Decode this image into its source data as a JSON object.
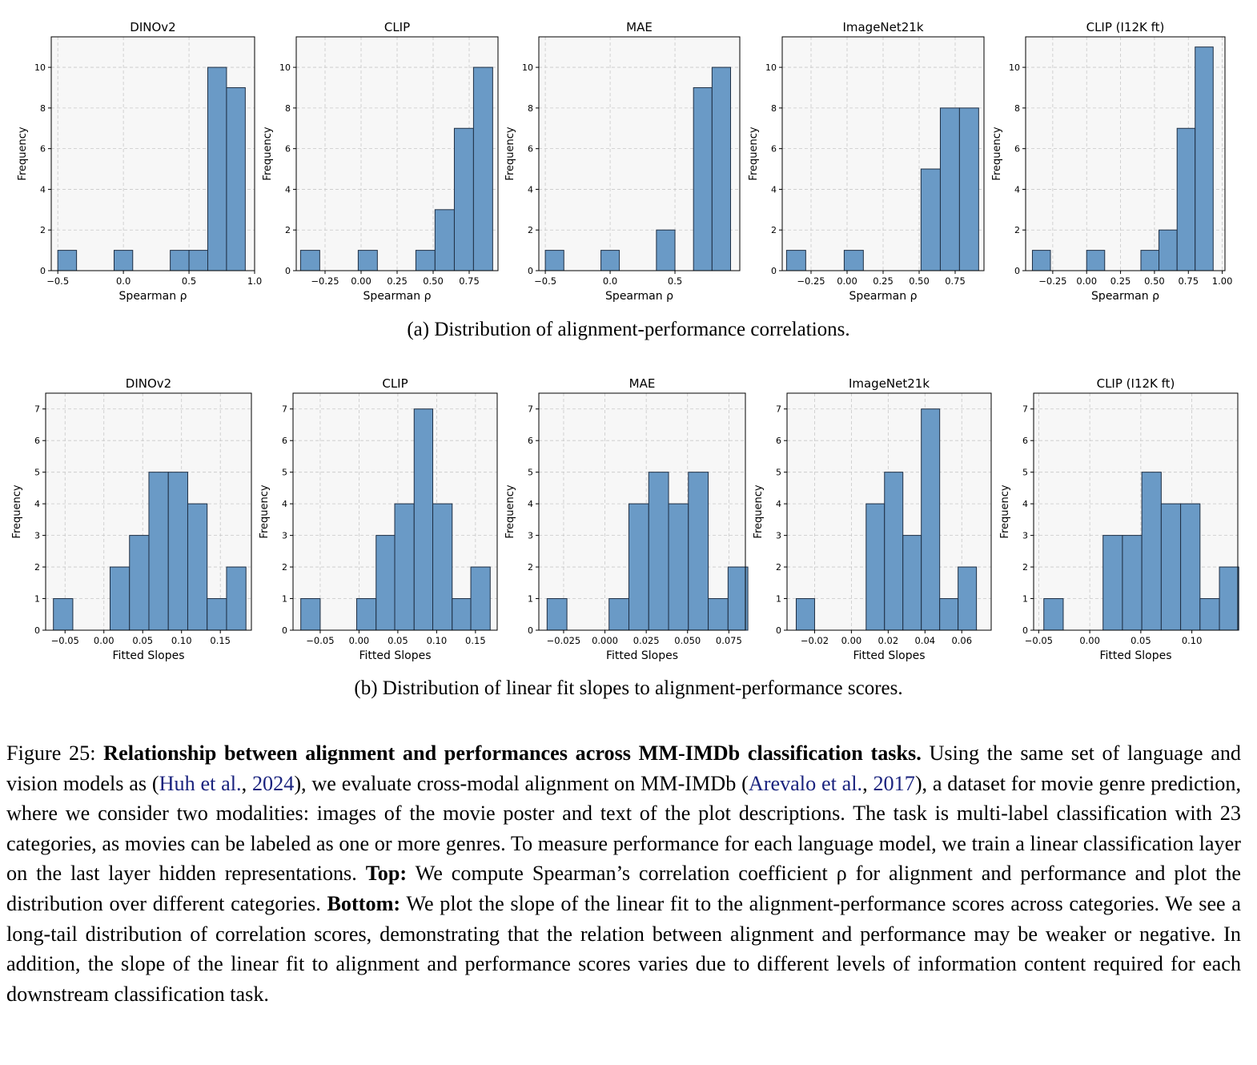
{
  "subcaptions": {
    "a": "(a) Distribution of alignment-performance correlations.",
    "b": "(b) Distribution of linear fit slopes to alignment-performance scores."
  },
  "caption": {
    "label": "Figure 25:",
    "title": "Relationship between alignment and performances across MM-IMDb classification tasks.",
    "p1": "Using the same set of language and vision models as (",
    "cite1_author": "Huh et al.",
    "cite1_sep": ", ",
    "cite1_year": "2024",
    "p2": "), we evaluate cross-modal alignment on MM-IMDb (",
    "cite2_author": "Arevalo et al.",
    "cite2_sep": ", ",
    "cite2_year": "2017",
    "p3": "), a dataset for movie genre prediction, where we consider two modalities: images of the movie poster and text of the plot descriptions. The task is multi-label classification with 23 categories, as movies can be labeled as one or more genres. To measure performance for each language model, we train a linear classification layer on the last layer hidden representations.",
    "top_label": "Top:",
    "p4": "We compute Spearman’s correlation coefficient ρ for alignment and performance and plot the distribution over different categories.",
    "bottom_label": "Bottom:",
    "p5": "We plot the slope of the linear fit to the alignment-performance scores across categories. We see a long-tail distribution of correlation scores, demonstrating that the relation between alignment and performance may be weaker or negative. In addition, the slope of the linear fit to alignment and performance scores varies due to different levels of information content required for each downstream classification task."
  },
  "colors": {
    "bar": "#6a9ac6",
    "bar_edge": "#1f2f44",
    "plot_bg": "#f7f7f7",
    "grid": "#c8c8c8"
  },
  "chart_data": [
    {
      "type": "bar",
      "title": "DINOv2",
      "xlabel": "Spearman ρ",
      "ylabel": "Frequency",
      "xlim": [
        -0.55,
        1.0
      ],
      "ylim": [
        0,
        11.5
      ],
      "yticks": [
        0,
        2,
        4,
        6,
        8,
        10
      ],
      "xticks": [
        -0.5,
        0.0,
        0.5,
        1.0
      ],
      "xtick_labels": [
        "−0.5",
        "0.0",
        "0.5",
        "1.0"
      ],
      "bins": [
        [
          -0.5,
          -0.357,
          1
        ],
        [
          -0.071,
          0.071,
          1
        ],
        [
          0.357,
          0.5,
          1
        ],
        [
          0.5,
          0.643,
          1
        ],
        [
          0.643,
          0.786,
          10
        ],
        [
          0.786,
          0.929,
          9
        ]
      ]
    },
    {
      "type": "bar",
      "title": "CLIP",
      "xlabel": "Spearman ρ",
      "ylabel": "Frequency",
      "xlim": [
        -0.45,
        0.95
      ],
      "ylim": [
        0,
        11.5
      ],
      "yticks": [
        0,
        2,
        4,
        6,
        8,
        10
      ],
      "xticks": [
        -0.25,
        0,
        0.25,
        0.5,
        0.75
      ],
      "xtick_labels": [
        "−0.25",
        "0.00",
        "0.25",
        "0.50",
        "0.75"
      ],
      "bins": [
        [
          -0.42,
          -0.287,
          1
        ],
        [
          -0.02,
          0.113,
          1
        ],
        [
          0.38,
          0.513,
          1
        ],
        [
          0.513,
          0.647,
          3
        ],
        [
          0.647,
          0.78,
          7
        ],
        [
          0.78,
          0.913,
          10
        ]
      ]
    },
    {
      "type": "bar",
      "title": "MAE",
      "xlabel": "Spearman ρ",
      "ylabel": "Frequency",
      "xlim": [
        -0.55,
        1.0
      ],
      "ylim": [
        0,
        11.5
      ],
      "yticks": [
        0,
        2,
        4,
        6,
        8,
        10
      ],
      "xticks": [
        -0.5,
        0.0,
        0.5
      ],
      "xtick_labels": [
        "−0.5",
        "0.0",
        "0.5"
      ],
      "bins": [
        [
          -0.5,
          -0.357,
          1
        ],
        [
          -0.071,
          0.071,
          1
        ],
        [
          0.357,
          0.5,
          2
        ],
        [
          0.643,
          0.786,
          9
        ],
        [
          0.786,
          0.929,
          10
        ]
      ]
    },
    {
      "type": "bar",
      "title": "ImageNet21k",
      "xlabel": "Spearman ρ",
      "ylabel": "Frequency",
      "xlim": [
        -0.45,
        0.95
      ],
      "ylim": [
        0,
        11.5
      ],
      "yticks": [
        0,
        2,
        4,
        6,
        8,
        10
      ],
      "xticks": [
        -0.25,
        0,
        0.25,
        0.5,
        0.75
      ],
      "xtick_labels": [
        "−0.25",
        "0.00",
        "0.25",
        "0.50",
        "0.75"
      ],
      "bins": [
        [
          -0.42,
          -0.287,
          1
        ],
        [
          -0.02,
          0.113,
          1
        ],
        [
          0.513,
          0.647,
          5
        ],
        [
          0.647,
          0.78,
          8
        ],
        [
          0.78,
          0.913,
          8
        ]
      ]
    },
    {
      "type": "bar",
      "title": "CLIP (I12K ft)",
      "xlabel": "Spearman ρ",
      "ylabel": "Frequency",
      "xlim": [
        -0.45,
        1.02
      ],
      "ylim": [
        0,
        11.5
      ],
      "yticks": [
        0,
        2,
        4,
        6,
        8,
        10
      ],
      "xticks": [
        -0.25,
        0,
        0.25,
        0.5,
        0.75,
        1.0
      ],
      "xtick_labels": [
        "−0.25",
        "0.00",
        "0.25",
        "0.50",
        "0.75",
        "1.00"
      ],
      "bins": [
        [
          -0.4,
          -0.267,
          1
        ],
        [
          0.0,
          0.133,
          1
        ],
        [
          0.4,
          0.533,
          1
        ],
        [
          0.533,
          0.667,
          2
        ],
        [
          0.667,
          0.8,
          7
        ],
        [
          0.8,
          0.933,
          11
        ]
      ]
    },
    {
      "type": "bar",
      "title": "DINOv2",
      "xlabel": "Fitted Slopes",
      "ylabel": "Frequency",
      "xlim": [
        -0.075,
        0.19
      ],
      "ylim": [
        0,
        7.5
      ],
      "yticks": [
        0,
        1,
        2,
        3,
        4,
        5,
        6,
        7
      ],
      "xticks": [
        -0.05,
        0,
        0.05,
        0.1,
        0.15
      ],
      "xtick_labels": [
        "−0.05",
        "0.00",
        "0.05",
        "0.10",
        "0.15"
      ],
      "bins": [
        [
          -0.065,
          -0.04,
          1
        ],
        [
          0.008,
          0.033,
          2
        ],
        [
          0.033,
          0.058,
          3
        ],
        [
          0.058,
          0.083,
          5
        ],
        [
          0.083,
          0.108,
          5
        ],
        [
          0.108,
          0.133,
          4
        ],
        [
          0.133,
          0.158,
          1
        ],
        [
          0.158,
          0.183,
          2
        ]
      ]
    },
    {
      "type": "bar",
      "title": "CLIP",
      "xlabel": "Fitted Slopes",
      "ylabel": "Frequency",
      "xlim": [
        -0.085,
        0.178
      ],
      "ylim": [
        0,
        7.5
      ],
      "yticks": [
        0,
        1,
        2,
        3,
        4,
        5,
        6,
        7
      ],
      "xticks": [
        -0.05,
        0,
        0.05,
        0.1,
        0.15
      ],
      "xtick_labels": [
        "−0.05",
        "0.00",
        "0.05",
        "0.10",
        "0.15"
      ],
      "bins": [
        [
          -0.075,
          -0.05,
          1
        ],
        [
          -0.003,
          0.022,
          1
        ],
        [
          0.022,
          0.046,
          3
        ],
        [
          0.046,
          0.071,
          4
        ],
        [
          0.071,
          0.095,
          7
        ],
        [
          0.095,
          0.12,
          4
        ],
        [
          0.12,
          0.144,
          1
        ],
        [
          0.144,
          0.169,
          2
        ]
      ]
    },
    {
      "type": "bar",
      "title": "MAE",
      "xlabel": "Fitted Slopes",
      "ylabel": "Frequency",
      "xlim": [
        -0.04,
        0.085
      ],
      "ylim": [
        0,
        7.5
      ],
      "yticks": [
        0,
        1,
        2,
        3,
        4,
        5,
        6,
        7
      ],
      "xticks": [
        -0.025,
        0,
        0.025,
        0.05,
        0.075
      ],
      "xtick_labels": [
        "−0.025",
        "0.000",
        "0.025",
        "0.050",
        "0.075"
      ],
      "bins": [
        [
          -0.035,
          -0.023,
          1
        ],
        [
          0.0025,
          0.0145,
          1
        ],
        [
          0.0145,
          0.0265,
          4
        ],
        [
          0.0265,
          0.0385,
          5
        ],
        [
          0.0385,
          0.0505,
          4
        ],
        [
          0.0505,
          0.0625,
          5
        ],
        [
          0.0625,
          0.0745,
          1
        ],
        [
          0.0745,
          0.0865,
          2
        ]
      ]
    },
    {
      "type": "bar",
      "title": "ImageNet21k",
      "xlabel": "Fitted Slopes",
      "ylabel": "Frequency",
      "xlim": [
        -0.035,
        0.076
      ],
      "ylim": [
        0,
        7.5
      ],
      "yticks": [
        0,
        1,
        2,
        3,
        4,
        5,
        6,
        7
      ],
      "xticks": [
        -0.02,
        0,
        0.02,
        0.04,
        0.06
      ],
      "xtick_labels": [
        "−0.02",
        "0.00",
        "0.02",
        "0.04",
        "0.06"
      ],
      "bins": [
        [
          -0.03,
          -0.02,
          1
        ],
        [
          0.008,
          0.018,
          4
        ],
        [
          0.018,
          0.028,
          5
        ],
        [
          0.028,
          0.038,
          3
        ],
        [
          0.038,
          0.048,
          7
        ],
        [
          0.048,
          0.058,
          1
        ],
        [
          0.058,
          0.068,
          2
        ]
      ]
    },
    {
      "type": "bar",
      "title": "CLIP (I12K ft)",
      "xlabel": "Fitted Slopes",
      "ylabel": "Frequency",
      "xlim": [
        -0.055,
        0.145
      ],
      "ylim": [
        0,
        7.5
      ],
      "yticks": [
        0,
        1,
        2,
        3,
        4,
        5,
        6,
        7
      ],
      "xticks": [
        -0.05,
        0,
        0.05,
        0.1
      ],
      "xtick_labels": [
        "−0.05",
        "0.00",
        "0.05",
        "0.10"
      ],
      "bins": [
        [
          -0.045,
          -0.026,
          1
        ],
        [
          0.013,
          0.032,
          3
        ],
        [
          0.032,
          0.051,
          3
        ],
        [
          0.051,
          0.07,
          5
        ],
        [
          0.07,
          0.089,
          4
        ],
        [
          0.089,
          0.108,
          4
        ],
        [
          0.108,
          0.127,
          1
        ],
        [
          0.127,
          0.146,
          2
        ]
      ]
    }
  ]
}
